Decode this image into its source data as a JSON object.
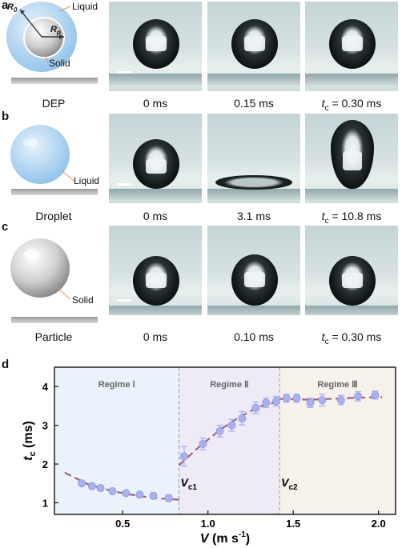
{
  "panels": {
    "a": {
      "letter": "a",
      "caption": "DEP",
      "labels": {
        "r0": "R",
        "r0_sub": "0",
        "rp": "R",
        "rp_sub": "p",
        "liquid": "Liquid",
        "solid": "Solid"
      },
      "times": [
        "0 ms",
        "0.15 ms",
        "= 0.30 ms"
      ],
      "tc_symbol": "t",
      "tc_sub": "c"
    },
    "b": {
      "letter": "b",
      "caption": "Droplet",
      "labels": {
        "liquid": "Liquid"
      },
      "times": [
        "0 ms",
        "3.1 ms",
        "= 10.8 ms"
      ],
      "tc_symbol": "t",
      "tc_sub": "c"
    },
    "c": {
      "letter": "c",
      "caption": "Particle",
      "labels": {
        "solid": "Solid"
      },
      "times": [
        "0 ms",
        "0.10 ms",
        "= 0.30 ms"
      ],
      "tc_symbol": "t",
      "tc_sub": "c"
    },
    "d": {
      "letter": "d"
    }
  },
  "colors": {
    "regime1": "#eaf2fb",
    "regime2": "#eeeaf6",
    "regime3": "#f6f1ea",
    "points": "#aab1f2",
    "fit": "#a0627d",
    "divider": "#9a9a9a"
  },
  "chart_data": {
    "type": "scatter",
    "xlabel": "V",
    "xlabel_unit": "(m s",
    "xlabel_unit_exp": "-1",
    "ylabel": "t",
    "ylabel_sub": "c",
    "ylabel_unit": "(ms)",
    "xlim": [
      0.1,
      2.1
    ],
    "ylim": [
      0.7,
      4.5
    ],
    "xticks": [
      0.5,
      1.0,
      1.5,
      2.0
    ],
    "xtick_labels": [
      "0.5",
      "1.0",
      "1.5",
      "2.0"
    ],
    "yticks": [
      1,
      2,
      3,
      4
    ],
    "ytick_labels": [
      "1",
      "2",
      "3",
      "4"
    ],
    "regimes": [
      {
        "label": "Regime Ⅰ",
        "from": 0.1,
        "to": 0.83
      },
      {
        "label": "Regime Ⅱ",
        "from": 0.83,
        "to": 1.42
      },
      {
        "label": "Regime Ⅲ",
        "from": 1.42,
        "to": 2.1
      }
    ],
    "thresholds": [
      {
        "label": "V",
        "sub": "c1",
        "x": 0.83
      },
      {
        "label": "V",
        "sub": "c2",
        "x": 1.42
      }
    ],
    "points": [
      {
        "x": 0.26,
        "y": 1.5,
        "err": 0.06
      },
      {
        "x": 0.32,
        "y": 1.43,
        "err": 0.06
      },
      {
        "x": 0.37,
        "y": 1.38,
        "err": 0.06
      },
      {
        "x": 0.44,
        "y": 1.3,
        "err": 0.06
      },
      {
        "x": 0.52,
        "y": 1.25,
        "err": 0.06
      },
      {
        "x": 0.6,
        "y": 1.21,
        "err": 0.06
      },
      {
        "x": 0.68,
        "y": 1.18,
        "err": 0.07
      },
      {
        "x": 0.77,
        "y": 1.12,
        "err": 0.08
      },
      {
        "x": 0.86,
        "y": 2.2,
        "err": 0.25
      },
      {
        "x": 0.97,
        "y": 2.52,
        "err": 0.15
      },
      {
        "x": 1.07,
        "y": 2.85,
        "err": 0.15
      },
      {
        "x": 1.14,
        "y": 3.0,
        "err": 0.15
      },
      {
        "x": 1.2,
        "y": 3.18,
        "err": 0.17
      },
      {
        "x": 1.28,
        "y": 3.45,
        "err": 0.15
      },
      {
        "x": 1.34,
        "y": 3.58,
        "err": 0.12
      },
      {
        "x": 1.4,
        "y": 3.62,
        "err": 0.12
      },
      {
        "x": 1.46,
        "y": 3.7,
        "err": 0.1
      },
      {
        "x": 1.52,
        "y": 3.7,
        "err": 0.1
      },
      {
        "x": 1.6,
        "y": 3.58,
        "err": 0.12
      },
      {
        "x": 1.67,
        "y": 3.65,
        "err": 0.15
      },
      {
        "x": 1.78,
        "y": 3.65,
        "err": 0.12
      },
      {
        "x": 1.88,
        "y": 3.75,
        "err": 0.12
      },
      {
        "x": 1.98,
        "y": 3.78,
        "err": 0.1
      }
    ],
    "fit_segments": [
      [
        [
          0.16,
          1.78
        ],
        [
          0.3,
          1.47
        ],
        [
          0.45,
          1.29
        ],
        [
          0.6,
          1.17
        ],
        [
          0.72,
          1.11
        ],
        [
          0.83,
          1.08
        ]
      ],
      [
        [
          0.83,
          1.97
        ],
        [
          0.95,
          2.45
        ],
        [
          1.07,
          2.88
        ],
        [
          1.18,
          3.2
        ],
        [
          1.3,
          3.48
        ],
        [
          1.42,
          3.62
        ]
      ],
      [
        [
          1.42,
          3.68
        ],
        [
          1.6,
          3.66
        ],
        [
          1.8,
          3.7
        ],
        [
          2.02,
          3.73
        ]
      ]
    ]
  }
}
